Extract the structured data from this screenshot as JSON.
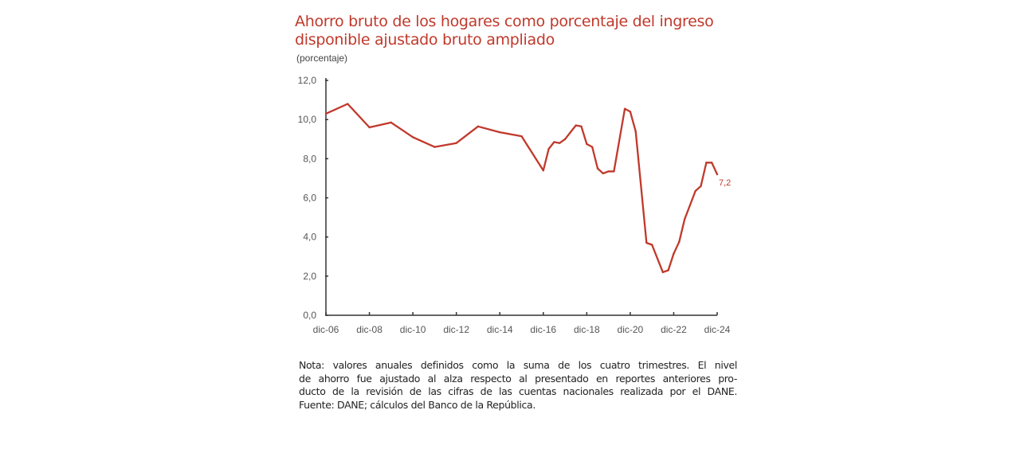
{
  "chart_data": {
    "type": "line",
    "title": "Ahorro bruto de los hogares como porcentaje del ingreso disponible ajustado bruto ampliado",
    "title_lines": [
      "Ahorro bruto de los hogares como porcentaje del ingreso",
      "disponible ajustado bruto ampliado"
    ],
    "ylabel": "(porcentaje)",
    "xlabel": "",
    "ylim": [
      0,
      12
    ],
    "y_ticks": [
      "0,0",
      "2,0",
      "4,0",
      "6,0",
      "8,0",
      "10,0",
      "12,0"
    ],
    "x_ticks": [
      "dic-06",
      "dic-08",
      "dic-10",
      "dic-12",
      "dic-14",
      "dic-16",
      "dic-18",
      "dic-20",
      "dic-22",
      "dic-24"
    ],
    "x_range": [
      "2006-12",
      "2024-12"
    ],
    "grid": false,
    "line_color": "#c0392b",
    "series": [
      {
        "x": [
          "2006-12",
          "2007-12",
          "2008-12",
          "2009-12",
          "2010-12",
          "2011-12",
          "2012-12",
          "2013-12",
          "2014-12",
          "2015-12",
          "2016-12",
          "2017-03",
          "2017-06",
          "2017-09",
          "2017-12",
          "2018-03",
          "2018-06",
          "2018-09",
          "2018-12",
          "2019-03",
          "2019-06",
          "2019-09",
          "2019-12",
          "2020-03",
          "2020-09",
          "2020-12",
          "2021-03",
          "2021-09",
          "2021-12",
          "2022-06",
          "2022-09",
          "2022-12",
          "2023-03",
          "2023-06",
          "2023-12",
          "2024-03",
          "2024-06",
          "2024-09",
          "2024-12"
        ],
        "values": [
          10.3,
          10.8,
          9.6,
          9.85,
          9.1,
          8.6,
          8.8,
          9.65,
          9.35,
          9.15,
          7.4,
          8.5,
          8.85,
          8.8,
          9.0,
          9.35,
          9.7,
          9.65,
          8.75,
          8.6,
          7.5,
          7.25,
          7.35,
          7.35,
          10.55,
          10.4,
          9.4,
          3.7,
          3.6,
          2.2,
          2.3,
          3.15,
          3.75,
          4.9,
          6.35,
          6.6,
          7.8,
          7.8,
          7.2
        ]
      }
    ],
    "annotations": [
      {
        "x": "2024-12",
        "text": "7,2"
      }
    ]
  },
  "note": {
    "lines": [
      "Nota: valores anuales definidos como la suma de los cuatro trimestres. El nivel",
      "de ahorro fue ajustado al alza respecto al presentado en reportes anteriores pro-",
      "ducto de la revisión de las cifras de las cuentas nacionales realizada por el DANE.",
      "Fuente: DANE; cálculos del Banco de la República."
    ]
  }
}
